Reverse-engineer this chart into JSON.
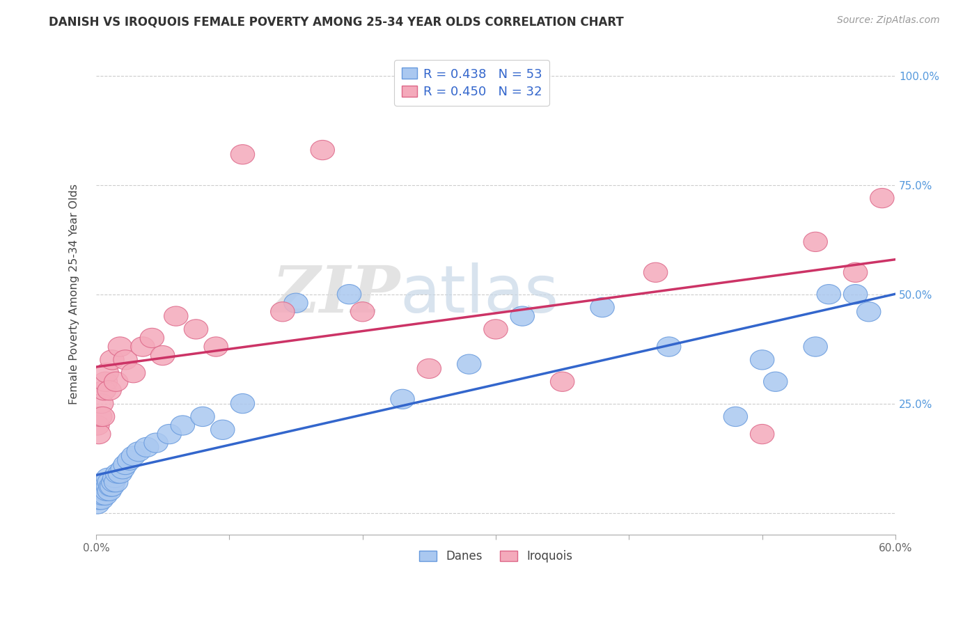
{
  "title": "DANISH VS IROQUOIS FEMALE POVERTY AMONG 25-34 YEAR OLDS CORRELATION CHART",
  "source": "Source: ZipAtlas.com",
  "ylabel": "Female Poverty Among 25-34 Year Olds",
  "xlim": [
    0.0,
    0.6
  ],
  "ylim": [
    -0.05,
    1.05
  ],
  "xticks": [
    0.0,
    0.1,
    0.2,
    0.3,
    0.4,
    0.5,
    0.6
  ],
  "xticklabels": [
    "0.0%",
    "",
    "",
    "",
    "",
    "",
    "60.0%"
  ],
  "yticks": [
    0.0,
    0.25,
    0.5,
    0.75,
    1.0
  ],
  "yticklabels_right": [
    "",
    "25.0%",
    "50.0%",
    "75.0%",
    "100.0%"
  ],
  "danes_color": "#aac8f0",
  "danes_edge": "#6699dd",
  "iroquois_color": "#f4aabb",
  "iroquois_edge": "#dd6688",
  "dane_line_color": "#3366cc",
  "iroquois_line_color": "#cc3366",
  "r_danes_str": "R = 0.438",
  "n_danes_str": "N = 53",
  "r_iroquois_str": "R = 0.450",
  "n_iroquois_str": "N = 32",
  "watermark_zip": "ZIP",
  "watermark_atlas": "atlas",
  "background_color": "#ffffff",
  "grid_color": "#cccccc",
  "danes_x": [
    0.001,
    0.001,
    0.002,
    0.002,
    0.003,
    0.003,
    0.004,
    0.004,
    0.005,
    0.005,
    0.006,
    0.006,
    0.007,
    0.007,
    0.008,
    0.008,
    0.009,
    0.009,
    0.01,
    0.01,
    0.011,
    0.012,
    0.013,
    0.014,
    0.015,
    0.016,
    0.018,
    0.02,
    0.022,
    0.025,
    0.028,
    0.032,
    0.038,
    0.045,
    0.055,
    0.065,
    0.08,
    0.095,
    0.11,
    0.15,
    0.19,
    0.23,
    0.28,
    0.32,
    0.38,
    0.43,
    0.48,
    0.5,
    0.51,
    0.54,
    0.55,
    0.57,
    0.58
  ],
  "danes_y": [
    0.02,
    0.04,
    0.03,
    0.05,
    0.04,
    0.06,
    0.03,
    0.05,
    0.04,
    0.06,
    0.05,
    0.07,
    0.04,
    0.06,
    0.05,
    0.07,
    0.06,
    0.08,
    0.05,
    0.07,
    0.06,
    0.06,
    0.07,
    0.08,
    0.07,
    0.09,
    0.09,
    0.1,
    0.11,
    0.12,
    0.13,
    0.14,
    0.15,
    0.16,
    0.18,
    0.2,
    0.22,
    0.19,
    0.25,
    0.48,
    0.5,
    0.26,
    0.34,
    0.45,
    0.47,
    0.38,
    0.22,
    0.35,
    0.3,
    0.38,
    0.5,
    0.5,
    0.46
  ],
  "iroquois_x": [
    0.001,
    0.002,
    0.003,
    0.004,
    0.005,
    0.006,
    0.007,
    0.008,
    0.01,
    0.012,
    0.015,
    0.018,
    0.022,
    0.028,
    0.035,
    0.042,
    0.05,
    0.06,
    0.075,
    0.09,
    0.11,
    0.14,
    0.17,
    0.2,
    0.25,
    0.3,
    0.35,
    0.42,
    0.5,
    0.54,
    0.57,
    0.59
  ],
  "iroquois_y": [
    0.2,
    0.18,
    0.22,
    0.25,
    0.22,
    0.28,
    0.3,
    0.32,
    0.28,
    0.35,
    0.3,
    0.38,
    0.35,
    0.32,
    0.38,
    0.4,
    0.36,
    0.45,
    0.42,
    0.38,
    0.82,
    0.46,
    0.83,
    0.46,
    0.33,
    0.42,
    0.3,
    0.55,
    0.18,
    0.62,
    0.55,
    0.72
  ]
}
